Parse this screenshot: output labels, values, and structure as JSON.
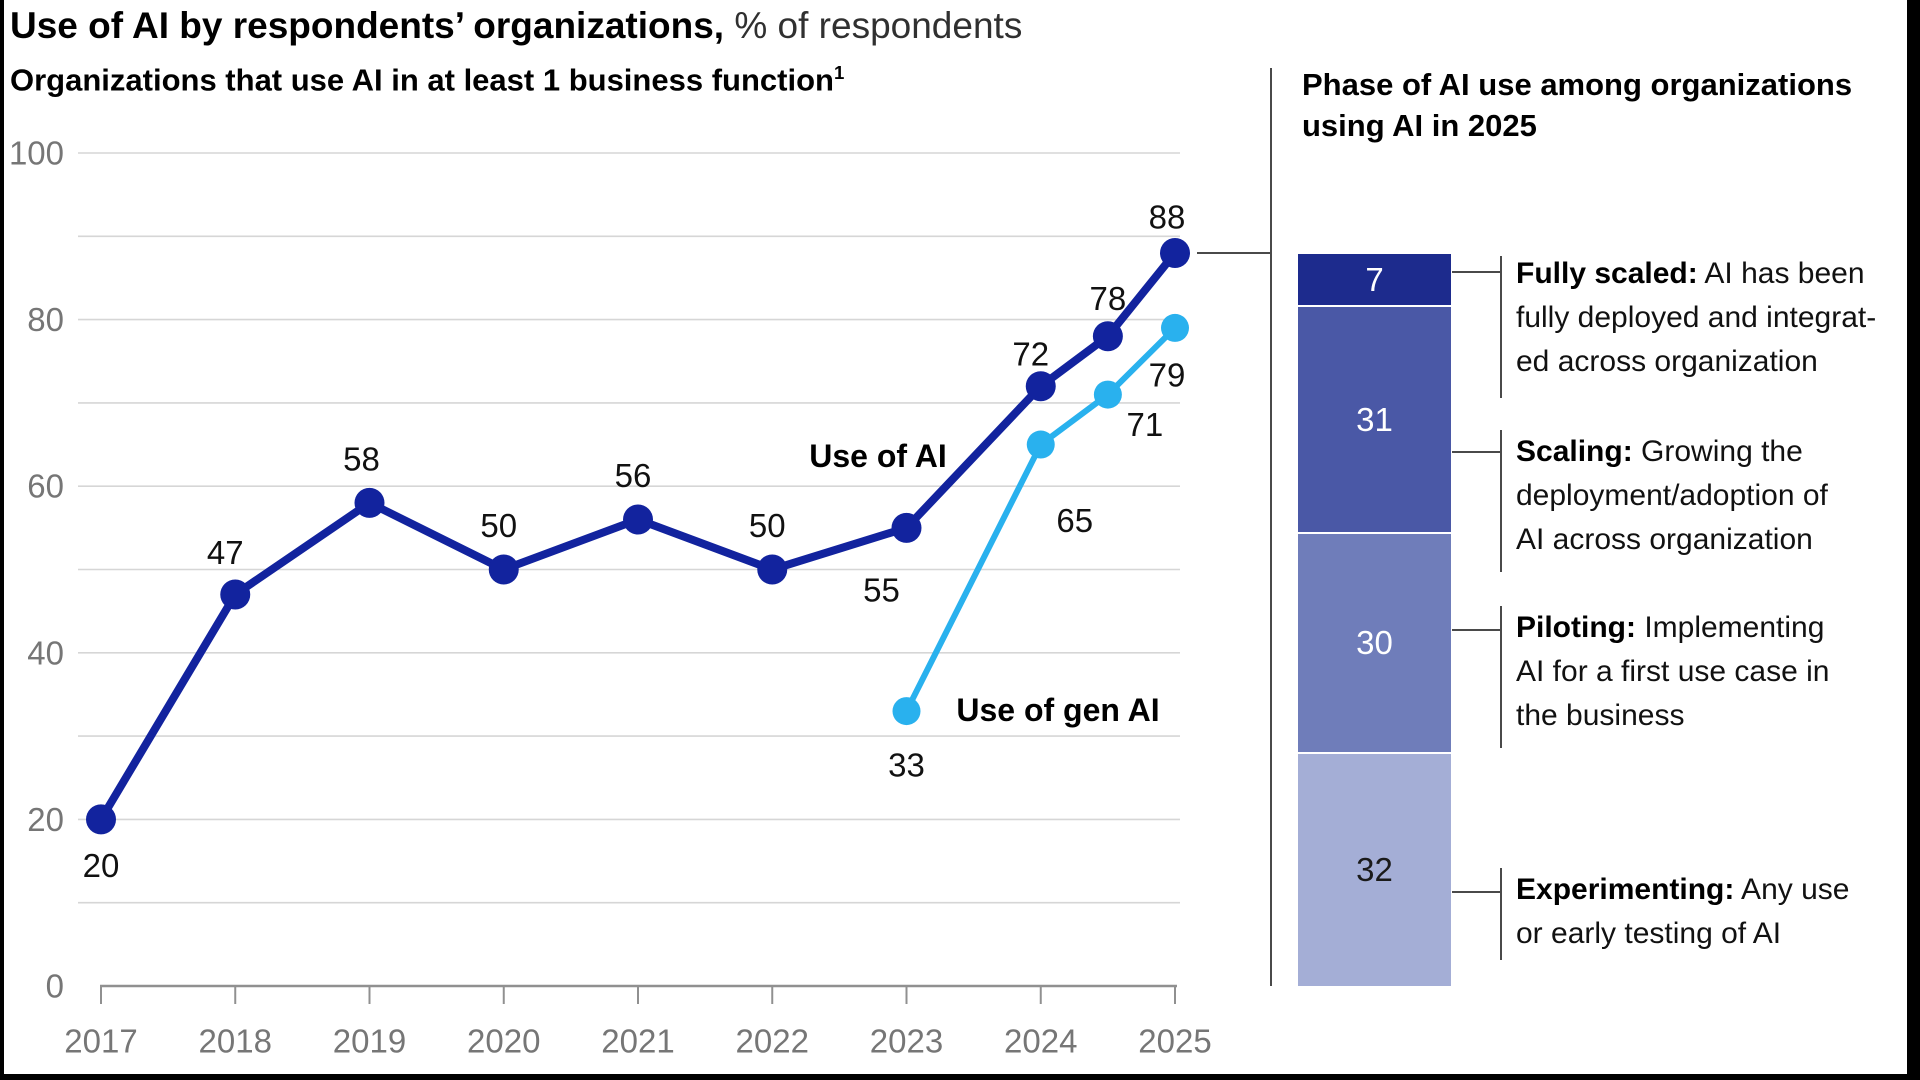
{
  "header": {
    "title_bold": "Use of AI by respondents’ organizations,",
    "title_unit": " % of respondents"
  },
  "chart_data": [
    {
      "type": "line",
      "title": "Organizations that use AI in at least 1 business function",
      "footnote_marker": "1",
      "x_tick_labels": [
        "2017",
        "2018",
        "2019",
        "2020",
        "2021",
        "2022",
        "2023",
        "2024",
        "2025"
      ],
      "y_tick_labels": [
        "0",
        "20",
        "40",
        "60",
        "80",
        "100"
      ],
      "ylim": [
        0,
        100
      ],
      "grid_step": 10,
      "grid_on": true,
      "axis_color": "#909090",
      "grid_color": "#d6d6d6",
      "tick_label_color": "#767676",
      "series": [
        {
          "name": "Use of AI",
          "color": "#12239e",
          "points": [
            [
              2017,
              20
            ],
            [
              2018,
              47
            ],
            [
              2019,
              58
            ],
            [
              2020,
              50
            ],
            [
              2021,
              56
            ],
            [
              2022,
              50
            ],
            [
              2023,
              55
            ],
            [
              2024,
              72
            ],
            [
              2024.5,
              78
            ],
            [
              2025,
              88
            ]
          ],
          "labels": [
            "20",
            "47",
            "58",
            "50",
            "56",
            "50",
            "55",
            "72",
            "78",
            "88"
          ]
        },
        {
          "name": "Use of gen AI",
          "color": "#29b1ee",
          "points": [
            [
              2023,
              33
            ],
            [
              2024,
              65
            ],
            [
              2024.5,
              71
            ],
            [
              2025,
              79
            ]
          ],
          "labels": [
            "33",
            "65",
            "71",
            "79"
          ]
        }
      ]
    },
    {
      "type": "bar",
      "title_lines": [
        "Phase of AI use among organizations",
        "using AI in 2025"
      ],
      "total": 100,
      "segments": [
        {
          "value": 7,
          "value_label": "7",
          "term": "Fully scaled:",
          "lines": [
            "Fully scaled: AI has been",
            "fully deployed and integrat-",
            "ed across organization"
          ],
          "color": "#1d2b8d",
          "value_color": "#ffffff"
        },
        {
          "value": 31,
          "value_label": "31",
          "term": "Scaling:",
          "lines": [
            "Scaling: Growing the",
            "deployment/adoption of",
            "AI across organization"
          ],
          "color": "#4a58a6",
          "value_color": "#ffffff"
        },
        {
          "value": 30,
          "value_label": "30",
          "term": "Piloting:",
          "lines": [
            "Piloting: Implementing",
            "AI for a first use case in",
            "the business"
          ],
          "color": "#6f7dba",
          "value_color": "#ffffff"
        },
        {
          "value": 32,
          "value_label": "32",
          "term": "Experimenting:",
          "lines": [
            "Experimenting: Any use",
            "or early testing of AI"
          ],
          "color": "#a4aed6",
          "value_color": "#1a1a1a"
        }
      ]
    }
  ]
}
